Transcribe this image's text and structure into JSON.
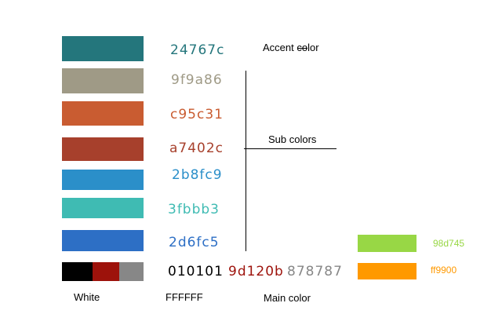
{
  "swatches": [
    {
      "hex": "24767c",
      "color": "#24767c"
    },
    {
      "hex": "9f9a86",
      "color": "#9f9a86"
    },
    {
      "hex": "c95c31",
      "color": "#c95c31"
    },
    {
      "hex": "a7402c",
      "color": "#a7402c"
    },
    {
      "hex": "2b8fc9",
      "color": "#2b8fc9"
    },
    {
      "hex": "3fbbb3",
      "color": "#3fbbb3"
    },
    {
      "hex": "2d6fc5",
      "color": "#2d6fc5"
    }
  ],
  "main_colors": [
    {
      "hex": "010101",
      "color": "#010101"
    },
    {
      "hex": "9d120b",
      "color": "#9d120b"
    },
    {
      "hex": "878787",
      "color": "#878787"
    }
  ],
  "white": {
    "label": "White",
    "hex": "FFFFFF"
  },
  "extra_colors": [
    {
      "hex": "98d745",
      "color": "#98d745"
    },
    {
      "hex": "ff9900",
      "color": "#ff9900"
    }
  ],
  "labels": {
    "accent": "Accent color",
    "sub": "Sub colors",
    "main": "Main color"
  }
}
